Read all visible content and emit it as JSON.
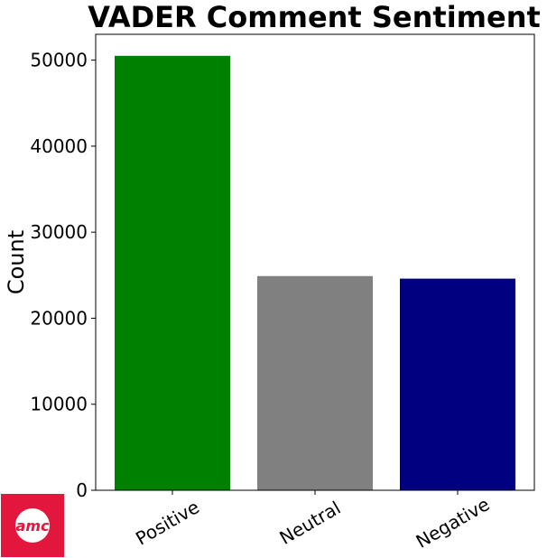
{
  "chart_data": {
    "type": "bar",
    "title": "VADER Comment Sentiment",
    "xlabel": "",
    "ylabel": "Count",
    "categories": [
      "Positive",
      "Neutral",
      "Negative"
    ],
    "values": [
      50500,
      24900,
      24600
    ],
    "colors": [
      "#008000",
      "#808080",
      "#000080"
    ],
    "ylim": [
      0,
      53000
    ],
    "yticks": [
      0,
      10000,
      20000,
      30000,
      40000,
      50000
    ],
    "ytick_labels": [
      "0",
      "10000",
      "20000",
      "30000",
      "40000",
      "50000"
    ],
    "xtick_rotation": "-30deg",
    "grid": false,
    "legend": "none"
  },
  "logo": {
    "text": "amc",
    "background": "#e3173e",
    "circle": "#ffffff",
    "text_color": "#e3173e"
  }
}
